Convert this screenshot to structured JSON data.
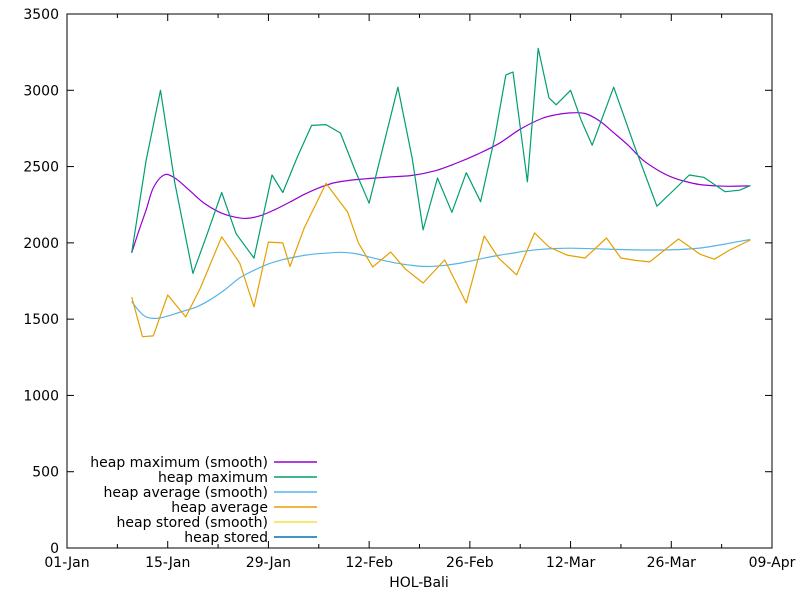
{
  "figure": {
    "background": "#ffffff",
    "axis_color": "#000000",
    "text_color": "#000000"
  },
  "chart_data": {
    "type": "line",
    "title": "",
    "xlabel": "HOL-Bali",
    "ylabel": "",
    "grid": false,
    "legend_position": "bottom-left-inside",
    "x_axis": {
      "unit": "days-from-01-Jan",
      "range_days": [
        0,
        98
      ],
      "major_tick_days": [
        0,
        14,
        28,
        42,
        56,
        70,
        84,
        98
      ],
      "tick_labels": [
        "01-Jan",
        "15-Jan",
        "29-Jan",
        "12-Feb",
        "26-Feb",
        "12-Mar",
        "26-Mar",
        "09-Apr"
      ],
      "minor_tick_days": [
        7,
        21,
        35,
        49,
        63,
        77,
        91
      ],
      "mirrored_ticks": true
    },
    "y_axis": {
      "min": 0,
      "max": 3500,
      "tick_interval": 500,
      "tick_labels": [
        "0",
        "500",
        "1000",
        "1500",
        "2000",
        "2500",
        "3000",
        "3500"
      ],
      "mirrored_ticks": true
    },
    "series": [
      {
        "name": "heap maximum (smooth)",
        "color": "#9400d3",
        "smooth": true,
        "points": [
          [
            9,
            1935
          ],
          [
            10,
            2080
          ],
          [
            11,
            2215
          ],
          [
            12,
            2360
          ],
          [
            13.5,
            2445
          ],
          [
            15,
            2425
          ],
          [
            17,
            2345
          ],
          [
            19,
            2262
          ],
          [
            21,
            2205
          ],
          [
            23,
            2172
          ],
          [
            25,
            2160
          ],
          [
            27,
            2180
          ],
          [
            29,
            2220
          ],
          [
            31,
            2268
          ],
          [
            33,
            2318
          ],
          [
            35,
            2360
          ],
          [
            37,
            2392
          ],
          [
            39,
            2408
          ],
          [
            42,
            2422
          ],
          [
            45,
            2432
          ],
          [
            48,
            2442
          ],
          [
            51,
            2470
          ],
          [
            54,
            2520
          ],
          [
            57,
            2580
          ],
          [
            60,
            2650
          ],
          [
            63,
            2745
          ],
          [
            66,
            2815
          ],
          [
            68,
            2840
          ],
          [
            70,
            2852
          ],
          [
            72,
            2848
          ],
          [
            74,
            2800
          ],
          [
            76,
            2722
          ],
          [
            78,
            2640
          ],
          [
            80,
            2545
          ],
          [
            82,
            2480
          ],
          [
            84,
            2432
          ],
          [
            86,
            2402
          ],
          [
            88,
            2382
          ],
          [
            90,
            2374
          ],
          [
            92,
            2371
          ],
          [
            95,
            2373
          ]
        ]
      },
      {
        "name": "heap maximum",
        "color": "#009e73",
        "smooth": false,
        "points": [
          [
            9,
            1935
          ],
          [
            11,
            2540
          ],
          [
            13,
            3000
          ],
          [
            15,
            2390
          ],
          [
            17.5,
            1800
          ],
          [
            19.5,
            2060
          ],
          [
            21.5,
            2330
          ],
          [
            23.5,
            2060
          ],
          [
            26,
            1900
          ],
          [
            28.5,
            2445
          ],
          [
            30,
            2330
          ],
          [
            32,
            2560
          ],
          [
            34,
            2770
          ],
          [
            36,
            2775
          ],
          [
            38,
            2720
          ],
          [
            40,
            2480
          ],
          [
            42,
            2260
          ],
          [
            44,
            2640
          ],
          [
            46,
            3020
          ],
          [
            48,
            2550
          ],
          [
            49.5,
            2085
          ],
          [
            51.5,
            2425
          ],
          [
            53.5,
            2200
          ],
          [
            55.5,
            2460
          ],
          [
            57.5,
            2270
          ],
          [
            59.5,
            2700
          ],
          [
            61,
            3100
          ],
          [
            62,
            3120
          ],
          [
            64,
            2400
          ],
          [
            65.5,
            3275
          ],
          [
            67,
            2950
          ],
          [
            68,
            2905
          ],
          [
            70,
            3000
          ],
          [
            71.5,
            2800
          ],
          [
            73,
            2640
          ],
          [
            74.5,
            2830
          ],
          [
            76,
            3020
          ],
          [
            79,
            2620
          ],
          [
            82,
            2240
          ],
          [
            84,
            2330
          ],
          [
            86.5,
            2445
          ],
          [
            88.5,
            2430
          ],
          [
            91.5,
            2335
          ],
          [
            93.5,
            2345
          ],
          [
            95,
            2375
          ]
        ]
      },
      {
        "name": "heap average (smooth)",
        "color": "#56b4e9",
        "smooth": true,
        "points": [
          [
            9,
            1615
          ],
          [
            10,
            1555
          ],
          [
            11,
            1515
          ],
          [
            12.5,
            1505
          ],
          [
            14,
            1520
          ],
          [
            16,
            1550
          ],
          [
            18,
            1580
          ],
          [
            20,
            1630
          ],
          [
            22,
            1695
          ],
          [
            24,
            1770
          ],
          [
            26,
            1820
          ],
          [
            28,
            1862
          ],
          [
            30,
            1890
          ],
          [
            32,
            1910
          ],
          [
            34,
            1925
          ],
          [
            36,
            1932
          ],
          [
            38,
            1938
          ],
          [
            40,
            1930
          ],
          [
            42,
            1908
          ],
          [
            44,
            1885
          ],
          [
            46,
            1866
          ],
          [
            48,
            1852
          ],
          [
            50,
            1845
          ],
          [
            52,
            1850
          ],
          [
            54,
            1862
          ],
          [
            56,
            1880
          ],
          [
            58,
            1900
          ],
          [
            60,
            1918
          ],
          [
            62,
            1933
          ],
          [
            64,
            1948
          ],
          [
            66,
            1958
          ],
          [
            68,
            1963
          ],
          [
            70,
            1965
          ],
          [
            73,
            1962
          ],
          [
            76,
            1957
          ],
          [
            79,
            1954
          ],
          [
            82,
            1953
          ],
          [
            85,
            1956
          ],
          [
            88,
            1966
          ],
          [
            90,
            1980
          ],
          [
            92,
            1997
          ],
          [
            95,
            2022
          ]
        ]
      },
      {
        "name": "heap average",
        "color": "#e69f00",
        "smooth": false,
        "points": [
          [
            9,
            1645
          ],
          [
            10.5,
            1385
          ],
          [
            12,
            1390
          ],
          [
            14,
            1658
          ],
          [
            16.5,
            1515
          ],
          [
            18.5,
            1700
          ],
          [
            21.5,
            2040
          ],
          [
            24,
            1868
          ],
          [
            26,
            1580
          ],
          [
            28,
            2005
          ],
          [
            30,
            2000
          ],
          [
            31,
            1845
          ],
          [
            33,
            2100
          ],
          [
            36,
            2390
          ],
          [
            39,
            2202
          ],
          [
            40.5,
            2000
          ],
          [
            42.5,
            1842
          ],
          [
            45,
            1940
          ],
          [
            47,
            1830
          ],
          [
            49.5,
            1737
          ],
          [
            52.5,
            1888
          ],
          [
            55.5,
            1606
          ],
          [
            58,
            2045
          ],
          [
            60,
            1900
          ],
          [
            62.5,
            1790
          ],
          [
            65,
            2065
          ],
          [
            67,
            1973
          ],
          [
            69.5,
            1920
          ],
          [
            72,
            1901
          ],
          [
            75,
            2032
          ],
          [
            77,
            1901
          ],
          [
            79,
            1885
          ],
          [
            81,
            1875
          ],
          [
            85,
            2025
          ],
          [
            88,
            1925
          ],
          [
            90,
            1893
          ],
          [
            92,
            1950
          ],
          [
            95,
            2019
          ]
        ]
      },
      {
        "name": "heap stored (smooth)",
        "color": "#f0e442",
        "smooth": true,
        "points": []
      },
      {
        "name": "heap stored",
        "color": "#0072b2",
        "smooth": false,
        "points": []
      }
    ],
    "legend": {
      "entries": [
        {
          "label": "heap maximum (smooth)",
          "color": "#9400d3"
        },
        {
          "label": "heap maximum",
          "color": "#009e73"
        },
        {
          "label": "heap average (smooth)",
          "color": "#56b4e9"
        },
        {
          "label": "heap average",
          "color": "#e69f00"
        },
        {
          "label": "heap stored (smooth)",
          "color": "#f0e442"
        },
        {
          "label": "heap stored",
          "color": "#0072b2"
        }
      ]
    }
  }
}
